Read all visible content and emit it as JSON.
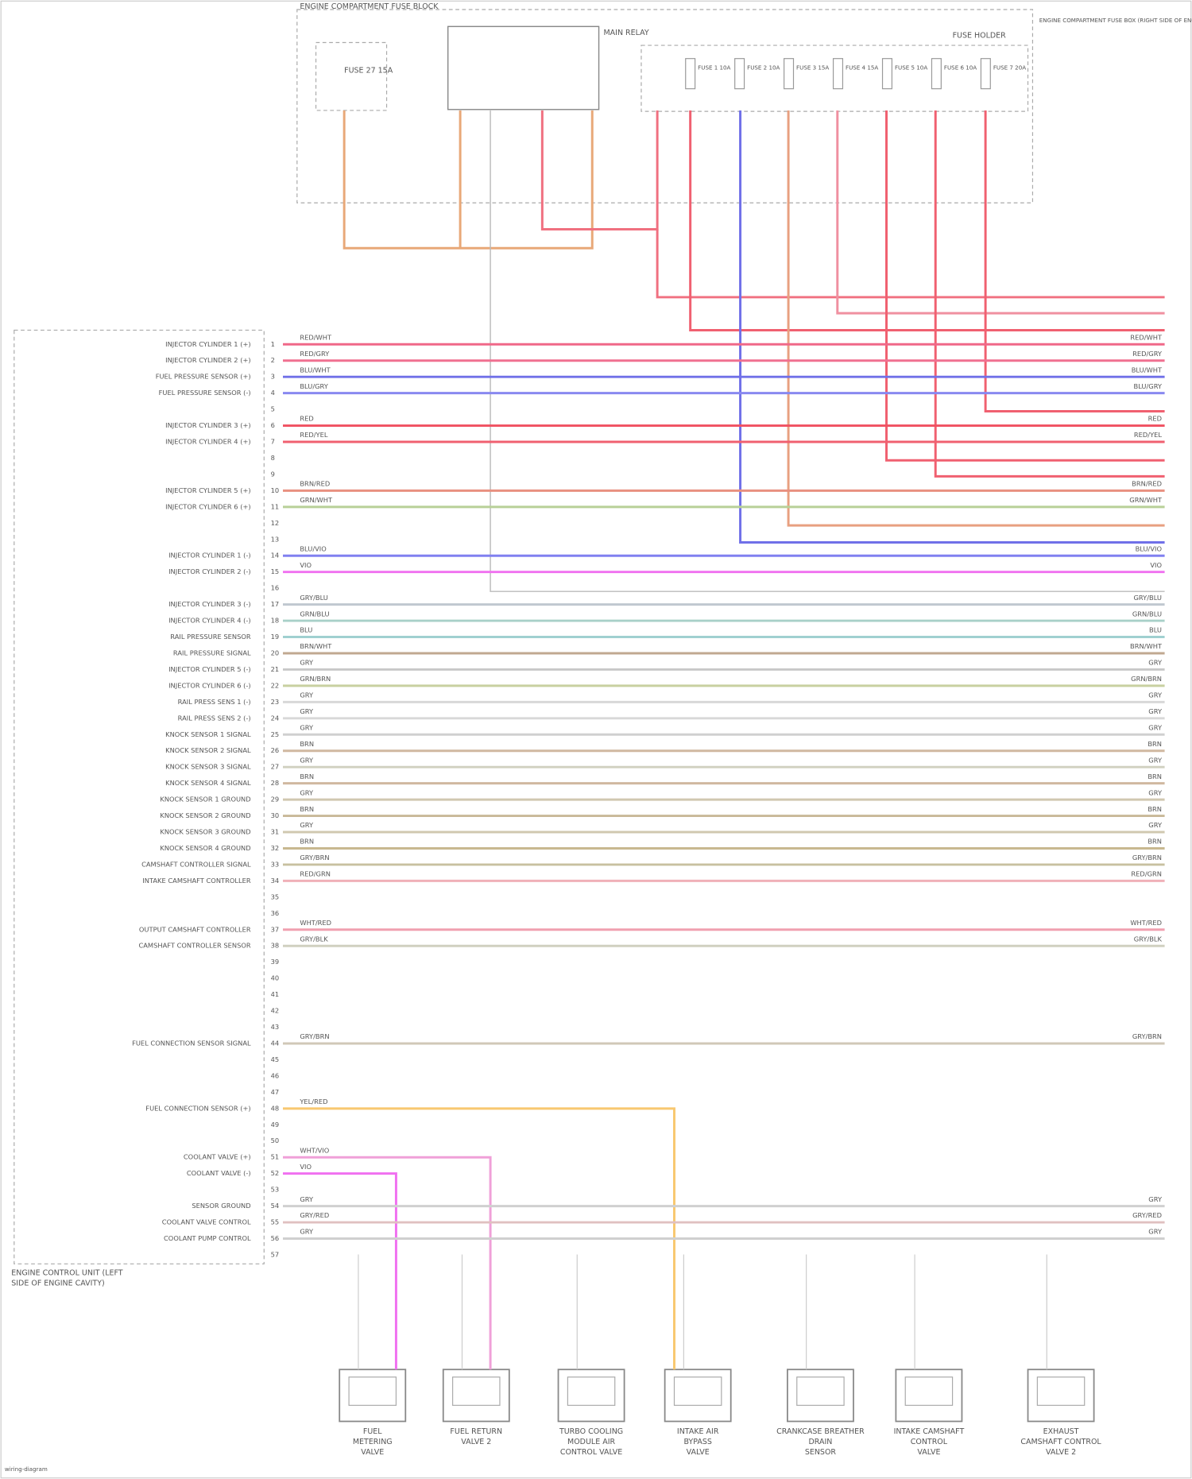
{
  "header": {
    "title": "ENGINE COMPARTMENT FUSE BLOCK",
    "main_relay": "MAIN RELAY",
    "fuse_holder": "FUSE HOLDER",
    "left_fuse": "FUSE 27 15A",
    "note": "ENGINE COMPARTMENT FUSE BOX (RIGHT SIDE OF ENGINE CAVITY)",
    "fuses": [
      "FUSE 1 10A",
      "FUSE 2 10A",
      "FUSE 3 15A",
      "FUSE 4 15A",
      "FUSE 5 10A",
      "FUSE 6 10A",
      "FUSE 7 20A"
    ]
  },
  "connector": {
    "label": [
      "ENGINE CONTROL UNIT (LEFT",
      "SIDE OF ENGINE CAVITY)"
    ],
    "pins": [
      {
        "pin": "1",
        "label": "INJECTOR CYLINDER 1 (+)",
        "wire": "RED/WHT",
        "color": "#f06888"
      },
      {
        "pin": "2",
        "label": "INJECTOR CYLINDER 2 (+)",
        "wire": "RED/GRY",
        "color": "#f07090"
      },
      {
        "pin": "3",
        "label": "FUEL PRESSURE SENSOR (+)",
        "wire": "BLU/WHT",
        "color": "#7070e8"
      },
      {
        "pin": "4",
        "label": "FUEL PRESSURE SENSOR (-)",
        "wire": "BLU/GRY",
        "color": "#8888f0"
      },
      {
        "pin": "5"
      },
      {
        "pin": "6",
        "label": "INJECTOR CYLINDER 3 (+)",
        "wire": "RED",
        "color": "#f05060"
      },
      {
        "pin": "7",
        "label": "INJECTOR CYLINDER 4 (+)",
        "wire": "RED/YEL",
        "color": "#f06070"
      },
      {
        "pin": "8"
      },
      {
        "pin": "9"
      },
      {
        "pin": "10",
        "label": "INJECTOR CYLINDER 5 (+)",
        "wire": "BRN/RED",
        "color": "#e89080"
      },
      {
        "pin": "11",
        "label": "INJECTOR CYLINDER 6 (+)",
        "wire": "GRN/WHT",
        "color": "#b8d098"
      },
      {
        "pin": "12"
      },
      {
        "pin": "13"
      },
      {
        "pin": "14",
        "label": "INJECTOR CYLINDER 1 (-)",
        "wire": "BLU/VIO",
        "color": "#8080f0"
      },
      {
        "pin": "15",
        "label": "INJECTOR CYLINDER 2 (-)",
        "wire": "VIO",
        "color": "#f070f0"
      },
      {
        "pin": "16"
      },
      {
        "pin": "17",
        "label": "INJECTOR CYLINDER 3 (-)",
        "wire": "GRY/BLU",
        "color": "#c0c8d0"
      },
      {
        "pin": "18",
        "label": "INJECTOR CYLINDER 4 (-)",
        "wire": "GRN/BLU",
        "color": "#a8d0c8"
      },
      {
        "pin": "19",
        "label": "RAIL PRESSURE SENSOR",
        "wire": "BLU",
        "color": "#a0d0d0"
      },
      {
        "pin": "20",
        "label": "RAIL PRESSURE SIGNAL",
        "wire": "BRN/WHT",
        "color": "#c0a890"
      },
      {
        "pin": "21",
        "label": "INJECTOR CYLINDER 5 (-)",
        "wire": "GRY",
        "color": "#c8c8c8"
      },
      {
        "pin": "22",
        "label": "INJECTOR CYLINDER 6 (-)",
        "wire": "GRN/BRN",
        "color": "#c8d0a0"
      },
      {
        "pin": "23",
        "label": "RAIL PRESS SENS 1 (-)",
        "wire": "GRY",
        "color": "#d8d8d8"
      },
      {
        "pin": "24",
        "label": "RAIL PRESS SENS 2 (-)",
        "wire": "GRY",
        "color": "#d8d8d8"
      },
      {
        "pin": "25",
        "label": "KNOCK SENSOR 1 SIGNAL",
        "wire": "GRY",
        "color": "#d0d0d0"
      },
      {
        "pin": "26",
        "label": "KNOCK SENSOR 2 SIGNAL",
        "wire": "BRN",
        "color": "#d0b8a0"
      },
      {
        "pin": "27",
        "label": "KNOCK SENSOR 3 SIGNAL",
        "wire": "GRY",
        "color": "#d0d0c0"
      },
      {
        "pin": "28",
        "label": "KNOCK SENSOR 4 SIGNAL",
        "wire": "BRN",
        "color": "#d0b8a0"
      },
      {
        "pin": "29",
        "label": "KNOCK SENSOR 1 GROUND",
        "wire": "GRY",
        "color": "#d0c8b0"
      },
      {
        "pin": "30",
        "label": "KNOCK SENSOR 2 GROUND",
        "wire": "BRN",
        "color": "#c8b898"
      },
      {
        "pin": "31",
        "label": "KNOCK SENSOR 3 GROUND",
        "wire": "GRY",
        "color": "#d0c8b0"
      },
      {
        "pin": "32",
        "label": "KNOCK SENSOR 4 GROUND",
        "wire": "BRN",
        "color": "#c8b890"
      },
      {
        "pin": "33",
        "label": "CAMSHAFT CONTROLLER SIGNAL",
        "wire": "GRY/BRN",
        "color": "#c8c0a0"
      },
      {
        "pin": "34",
        "label": "INTAKE CAMSHAFT CONTROLLER",
        "wire": "RED/GRN",
        "color": "#f0b0b8"
      },
      {
        "pin": "35"
      },
      {
        "pin": "36"
      },
      {
        "pin": "37",
        "label": "OUTPUT CAMSHAFT CONTROLLER",
        "wire": "WHT/RED",
        "color": "#f0a0b0"
      },
      {
        "pin": "38",
        "label": "CAMSHAFT CONTROLLER SENSOR",
        "wire": "GRY/BLK",
        "color": "#d0d0c0"
      },
      {
        "pin": "39"
      },
      {
        "pin": "40"
      },
      {
        "pin": "41"
      },
      {
        "pin": "42"
      },
      {
        "pin": "43"
      },
      {
        "pin": "44",
        "label": "FUEL CONNECTION SENSOR SIGNAL",
        "wire": "GRY/BRN",
        "color": "#d0c8b8"
      },
      {
        "pin": "45"
      },
      {
        "pin": "46"
      },
      {
        "pin": "47"
      },
      {
        "pin": "48",
        "label": "FUEL CONNECTION SENSOR (+)",
        "wire": "YEL/RED",
        "color": "#f8c870"
      },
      {
        "pin": "49"
      },
      {
        "pin": "50"
      },
      {
        "pin": "51",
        "label": "COOLANT VALVE (+)",
        "wire": "WHT/VIO",
        "color": "#f0a0d8"
      },
      {
        "pin": "52",
        "label": "COOLANT VALVE (-)",
        "wire": "VIO",
        "color": "#f070f0"
      },
      {
        "pin": "53"
      },
      {
        "pin": "54",
        "label": "SENSOR GROUND",
        "wire": "GRY",
        "color": "#d0d0d0"
      },
      {
        "pin": "55",
        "label": "COOLANT VALVE CONTROL",
        "wire": "GRY/RED",
        "color": "#e0c0c0"
      },
      {
        "pin": "56",
        "label": "COOLANT PUMP CONTROL",
        "wire": "GRY",
        "color": "#d0d0d0"
      },
      {
        "pin": "57"
      }
    ]
  },
  "components": [
    {
      "name_lines": [
        "FUEL",
        "METERING",
        "VALVE"
      ]
    },
    {
      "name_lines": [
        "FUEL RETURN",
        "VALVE 2"
      ]
    },
    {
      "name_lines": [
        "TURBO COOLING",
        "MODULE AIR",
        "CONTROL VALVE"
      ]
    },
    {
      "name_lines": [
        "INTAKE AIR",
        "BYPASS",
        "VALVE"
      ]
    },
    {
      "name_lines": [
        "CRANKCASE BREATHER",
        "DRAIN",
        "SENSOR"
      ]
    },
    {
      "name_lines": [
        "INTAKE CAMSHAFT",
        "CONTROL",
        "VALVE"
      ]
    },
    {
      "name_lines": [
        "EXHAUST",
        "CAMSHAFT CONTROL",
        "VALVE 2"
      ]
    }
  ],
  "footer": "wiring-diagram"
}
